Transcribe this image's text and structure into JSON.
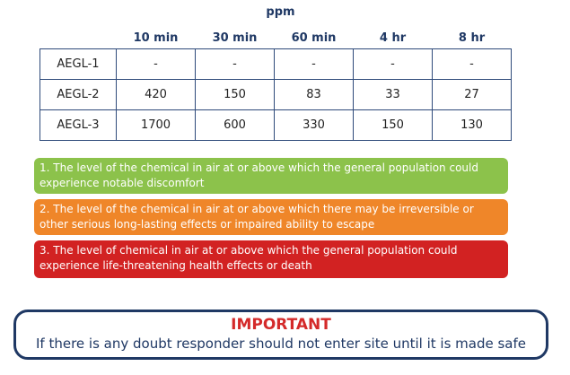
{
  "table": {
    "unit": "ppm",
    "columns": [
      "10 min",
      "30 min",
      "60 min",
      "4 hr",
      "8 hr"
    ],
    "rows": [
      [
        "AEGL-1",
        "-",
        "-",
        "-",
        "-",
        "-"
      ],
      [
        "AEGL-2",
        420,
        150,
        83,
        33,
        27
      ],
      [
        "AEGL-3",
        1700,
        600,
        330,
        150,
        130
      ]
    ]
  },
  "notes": [
    "1. The level of the chemical in air at or above which the general population could experience notable discomfort",
    "2. The level of the chemical in air at or above which there may be irreversible or other serious long-lasting effects or impaired ability to escape",
    "3. The level of chemical in air at or above which the general population could experience life-threatening health effects or death"
  ],
  "notice": {
    "title": "IMPORTANT",
    "text": "If there is any doubt responder should not enter site until it is made safe"
  }
}
